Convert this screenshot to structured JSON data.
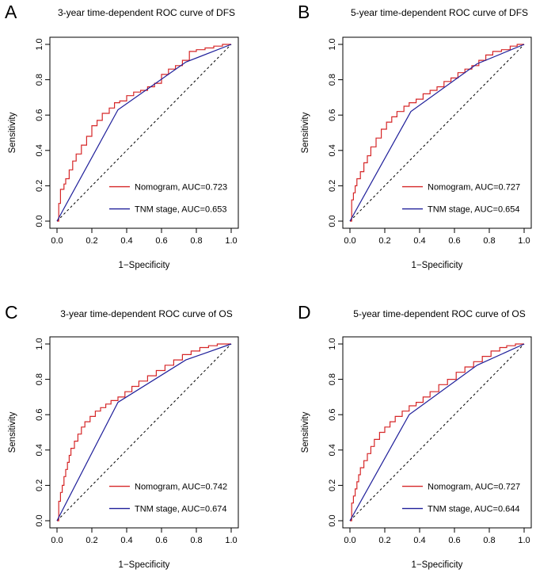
{
  "chart_data": [
    {
      "panel": "A",
      "type": "line",
      "title": "3-year time-dependent ROC curve of DFS",
      "xlabel": "1−Specificity",
      "ylabel": "Sensitivity",
      "xlim": [
        0,
        1
      ],
      "ylim": [
        0,
        1
      ],
      "xticks": [
        "0.0",
        "0.2",
        "0.4",
        "0.6",
        "0.8",
        "1.0"
      ],
      "yticks": [
        "0.0",
        "0.2",
        "0.4",
        "0.6",
        "0.8",
        "1.0"
      ],
      "legend_position": "bottom-right",
      "series": [
        {
          "name": "Nomogram, AUC=0.723",
          "color": "#d62728",
          "style": "step",
          "x": [
            0,
            0.01,
            0.01,
            0.02,
            0.02,
            0.04,
            0.05,
            0.07,
            0.09,
            0.11,
            0.14,
            0.17,
            0.2,
            0.23,
            0.26,
            0.3,
            0.33,
            0.36,
            0.4,
            0.44,
            0.48,
            0.52,
            0.56,
            0.6,
            0.64,
            0.68,
            0.72,
            0.76,
            0.8,
            0.85,
            0.9,
            0.95,
            1
          ],
          "y": [
            0,
            0.05,
            0.1,
            0.15,
            0.18,
            0.21,
            0.24,
            0.29,
            0.34,
            0.38,
            0.43,
            0.48,
            0.54,
            0.57,
            0.61,
            0.64,
            0.67,
            0.68,
            0.71,
            0.73,
            0.74,
            0.76,
            0.78,
            0.83,
            0.86,
            0.88,
            0.91,
            0.96,
            0.97,
            0.98,
            0.99,
            1,
            1
          ]
        },
        {
          "name": "TNM stage, AUC=0.653",
          "color": "#1f1f9a",
          "style": "line",
          "x": [
            0,
            0.35,
            0.74,
            1
          ],
          "y": [
            0,
            0.63,
            0.9,
            1
          ]
        }
      ]
    },
    {
      "panel": "B",
      "type": "line",
      "title": "5-year time-dependent ROC curve of DFS",
      "xlabel": "1−Specificity",
      "ylabel": "Sensitivity",
      "xlim": [
        0,
        1
      ],
      "ylim": [
        0,
        1
      ],
      "xticks": [
        "0.0",
        "0.2",
        "0.4",
        "0.6",
        "0.8",
        "1.0"
      ],
      "yticks": [
        "0.0",
        "0.2",
        "0.4",
        "0.6",
        "0.8",
        "1.0"
      ],
      "legend_position": "bottom-right",
      "series": [
        {
          "name": "Nomogram, AUC=0.727",
          "color": "#d62728",
          "style": "step",
          "x": [
            0,
            0.01,
            0.01,
            0.02,
            0.03,
            0.04,
            0.06,
            0.08,
            0.1,
            0.12,
            0.15,
            0.18,
            0.21,
            0.24,
            0.27,
            0.31,
            0.34,
            0.38,
            0.42,
            0.46,
            0.5,
            0.54,
            0.58,
            0.62,
            0.66,
            0.7,
            0.74,
            0.78,
            0.82,
            0.87,
            0.92,
            0.96,
            1
          ],
          "y": [
            0,
            0.07,
            0.12,
            0.16,
            0.2,
            0.24,
            0.28,
            0.33,
            0.37,
            0.42,
            0.47,
            0.52,
            0.56,
            0.59,
            0.62,
            0.65,
            0.67,
            0.69,
            0.72,
            0.74,
            0.76,
            0.79,
            0.81,
            0.84,
            0.86,
            0.88,
            0.91,
            0.94,
            0.96,
            0.97,
            0.99,
            1,
            1
          ]
        },
        {
          "name": "TNM stage, AUC=0.654",
          "color": "#1f1f9a",
          "style": "line",
          "x": [
            0,
            0.35,
            0.73,
            1
          ],
          "y": [
            0,
            0.62,
            0.89,
            1
          ]
        }
      ]
    },
    {
      "panel": "C",
      "type": "line",
      "title": "3-year time-dependent ROC curve of OS",
      "xlabel": "1−Specificity",
      "ylabel": "Sensitivity",
      "xlim": [
        0,
        1
      ],
      "ylim": [
        0,
        1
      ],
      "xticks": [
        "0.0",
        "0.2",
        "0.4",
        "0.6",
        "0.8",
        "1.0"
      ],
      "yticks": [
        "0.0",
        "0.2",
        "0.4",
        "0.6",
        "0.8",
        "1.0"
      ],
      "legend_position": "bottom-right",
      "series": [
        {
          "name": "Nomogram, AUC=0.742",
          "color": "#d62728",
          "style": "step",
          "x": [
            0,
            0.01,
            0.01,
            0.02,
            0.03,
            0.04,
            0.05,
            0.06,
            0.07,
            0.08,
            0.1,
            0.12,
            0.14,
            0.16,
            0.19,
            0.22,
            0.25,
            0.28,
            0.31,
            0.35,
            0.39,
            0.43,
            0.47,
            0.52,
            0.57,
            0.62,
            0.67,
            0.72,
            0.77,
            0.82,
            0.87,
            0.92,
            1
          ],
          "y": [
            0,
            0.06,
            0.11,
            0.16,
            0.2,
            0.25,
            0.29,
            0.33,
            0.37,
            0.41,
            0.45,
            0.49,
            0.53,
            0.56,
            0.59,
            0.62,
            0.64,
            0.66,
            0.68,
            0.7,
            0.73,
            0.76,
            0.79,
            0.82,
            0.85,
            0.88,
            0.91,
            0.94,
            0.96,
            0.98,
            0.99,
            1,
            1
          ]
        },
        {
          "name": "TNM stage, AUC=0.674",
          "color": "#1f1f9a",
          "style": "line",
          "x": [
            0,
            0.35,
            0.74,
            1
          ],
          "y": [
            0,
            0.67,
            0.91,
            1
          ]
        }
      ]
    },
    {
      "panel": "D",
      "type": "line",
      "title": "5-year time-dependent ROC curve of OS",
      "xlabel": "1−Specificity",
      "ylabel": "Sensitivity",
      "xlim": [
        0,
        1
      ],
      "ylim": [
        0,
        1
      ],
      "xticks": [
        "0.0",
        "0.2",
        "0.4",
        "0.6",
        "0.8",
        "1.0"
      ],
      "yticks": [
        "0.0",
        "0.2",
        "0.4",
        "0.6",
        "0.8",
        "1.0"
      ],
      "legend_position": "bottom-right",
      "series": [
        {
          "name": "Nomogram, AUC=0.727",
          "color": "#d62728",
          "style": "step",
          "x": [
            0,
            0.01,
            0.01,
            0.02,
            0.03,
            0.04,
            0.05,
            0.06,
            0.08,
            0.1,
            0.12,
            0.14,
            0.17,
            0.2,
            0.23,
            0.26,
            0.3,
            0.34,
            0.38,
            0.42,
            0.46,
            0.51,
            0.56,
            0.61,
            0.66,
            0.71,
            0.76,
            0.81,
            0.86,
            0.9,
            0.95,
            1
          ],
          "y": [
            0,
            0.05,
            0.1,
            0.14,
            0.18,
            0.22,
            0.26,
            0.3,
            0.34,
            0.38,
            0.42,
            0.46,
            0.5,
            0.53,
            0.56,
            0.59,
            0.62,
            0.65,
            0.67,
            0.7,
            0.73,
            0.77,
            0.8,
            0.84,
            0.87,
            0.9,
            0.93,
            0.96,
            0.98,
            0.99,
            1,
            1
          ]
        },
        {
          "name": "TNM stage, AUC=0.644",
          "color": "#1f1f9a",
          "style": "line",
          "x": [
            0,
            0.34,
            0.73,
            1
          ],
          "y": [
            0,
            0.6,
            0.88,
            1
          ]
        }
      ]
    }
  ]
}
